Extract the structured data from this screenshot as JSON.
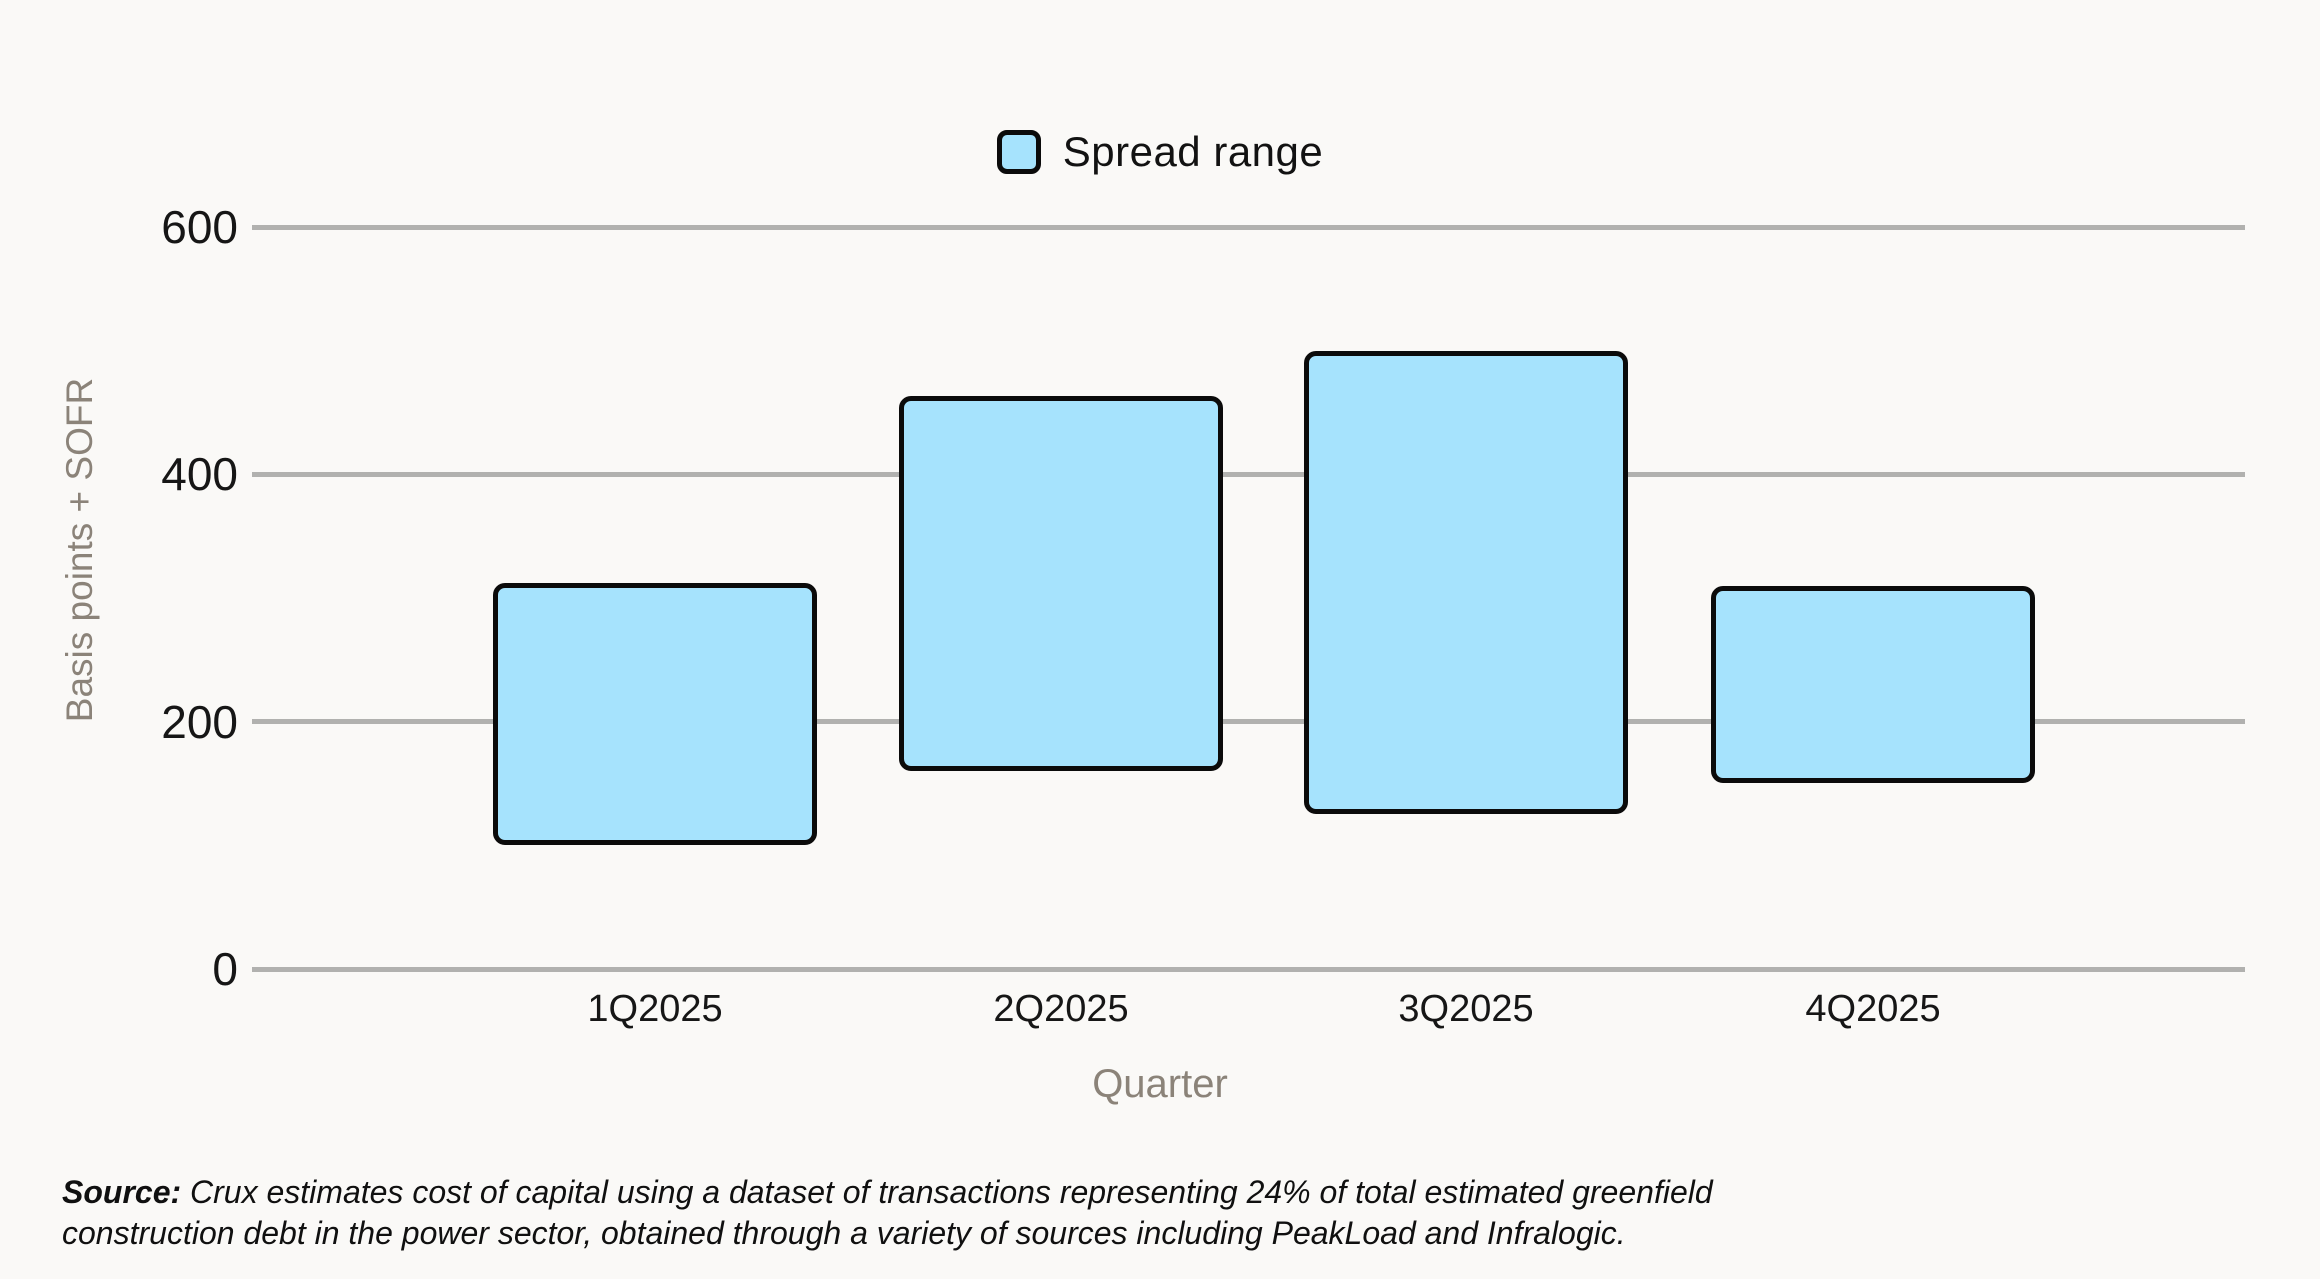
{
  "page": {
    "background": "#FAF9F7"
  },
  "legend": {
    "label": "Spread range"
  },
  "chart_data": {
    "type": "bar",
    "subtype": "floating-range-columns",
    "title": "",
    "categories": [
      "1Q2025",
      "2Q2025",
      "3Q2025",
      "4Q2025"
    ],
    "series": [
      {
        "name": "Spread range",
        "ranges_bp": [
          {
            "category": "1Q2025",
            "low": 100,
            "high": 312
          },
          {
            "category": "2Q2025",
            "low": 160,
            "high": 463
          },
          {
            "category": "3Q2025",
            "low": 125,
            "high": 500
          },
          {
            "category": "4Q2025",
            "low": 150,
            "high": 310
          }
        ]
      }
    ],
    "xlabel": "Quarter",
    "ylabel": "Basis points + SOFR",
    "ylim": [
      0,
      600
    ],
    "yticks": [
      0,
      200,
      400,
      600
    ],
    "grid": true,
    "legend_position": "top-center",
    "colors": {
      "bar_fill": "#A6E3FD",
      "bar_stroke": "#0B0B0B",
      "gridline": "#B1B1AF",
      "tick_text": "#161616",
      "axis_title_text": "#8B8379",
      "background": "#FAF9F7"
    }
  },
  "source_note": {
    "prefix": "Source:",
    "text": " Crux estimates cost of capital using a dataset of transactions representing 24% of total estimated greenfield construction debt in the power sector, obtained through a variety of sources including PeakLoad and Infralogic."
  }
}
